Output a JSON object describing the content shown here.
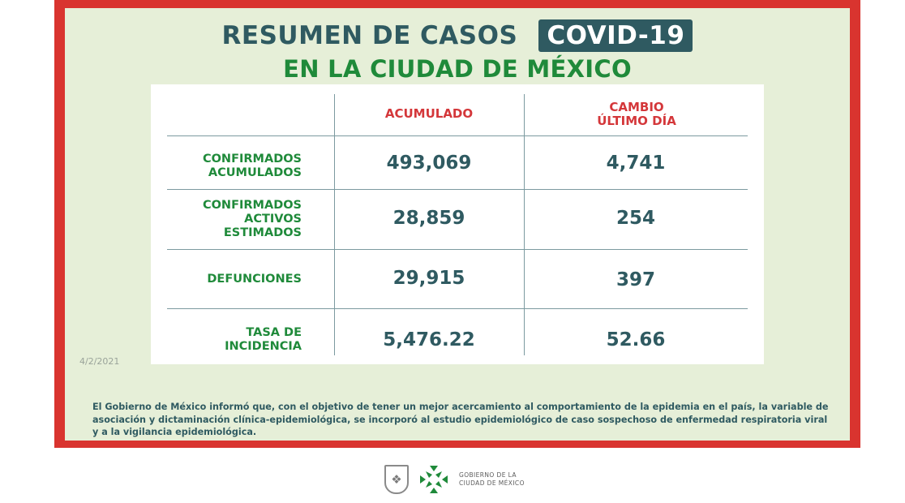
{
  "header": {
    "title": "RESUMEN DE CASOS",
    "badge": "COVID-19",
    "subtitle": "EN LA CIUDAD DE MÉXICO"
  },
  "table": {
    "columns": [
      "ACUMULADO",
      "CAMBIO\nÚLTIMO DÍA"
    ],
    "rows": [
      {
        "label": "CONFIRMADOS\nACUMULADOS",
        "acumulado": "493,069",
        "cambio": "4,741"
      },
      {
        "label": "CONFIRMADOS\nACTIVOS\nESTIMADOS",
        "acumulado": "28,859",
        "cambio": "254"
      },
      {
        "label": "DEFUNCIONES",
        "acumulado": "29,915",
        "cambio": "397"
      },
      {
        "label": "TASA DE\nINCIDENCIA",
        "acumulado": "5,476.22",
        "cambio": "52.66"
      }
    ]
  },
  "date": "4/2/2021",
  "note": "El Gobierno de México informó que, con el objetivo de tener un mejor acercamiento al comportamiento de la epidemia en el país, la variable de asociación y dictaminación clínica-epidemiológica, se incorporó al estudio epidemiológico de caso sospechoso de enfermedad respiratoria viral y a la vigilancia epidemiológica.",
  "footer": {
    "gov_line1": "GOBIERNO DE LA",
    "gov_line2": "CIUDAD DE MÉXICO"
  },
  "colors": {
    "frame": "#d9342f",
    "panel": "#e6efd8",
    "teal": "#2f5a61",
    "green": "#1f8a3a",
    "red": "#d4373a"
  }
}
